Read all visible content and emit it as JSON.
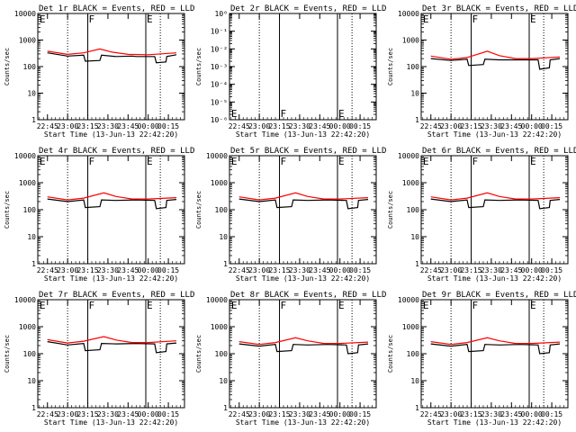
{
  "figure": {
    "x_tick_labels": [
      "22:45",
      "23:00",
      "23:15",
      "23:30",
      "23:45",
      "00:00",
      "00:15"
    ],
    "xlabel": "Start Time (13-Jun-13 22:42:20)",
    "ylabel": "Counts/sec",
    "y_tick_labels_log": [
      "1",
      "10",
      "100",
      "1000",
      "10000"
    ],
    "y_tick_labels_det2": [
      "10⁰",
      "10⁻¹",
      "10⁻²",
      "10⁻³",
      "10⁻⁴",
      "10⁻⁵",
      "10⁻⁶"
    ],
    "colors": {
      "events": "#000000",
      "lld": "#ff0000",
      "axes": "#000000"
    }
  },
  "chart_data": [
    {
      "type": "line",
      "title": "Det 1r BLACK = Events, RED = LLD",
      "ylim": [
        1,
        10000
      ],
      "yscale": "log",
      "markers_top": [
        "E",
        "F",
        "E"
      ],
      "series": [
        {
          "name": "Events",
          "color": "#000000",
          "values": [
            [
              22.75,
              330
            ],
            [
              23.0,
              250
            ],
            [
              23.2,
              270
            ],
            [
              23.22,
              160
            ],
            [
              23.4,
              170
            ],
            [
              23.42,
              270
            ],
            [
              23.6,
              240
            ],
            [
              23.8,
              250
            ],
            [
              23.85,
              240
            ],
            [
              24.08,
              240
            ],
            [
              24.1,
              140
            ],
            [
              24.22,
              150
            ],
            [
              24.23,
              240
            ],
            [
              24.35,
              280
            ]
          ]
        },
        {
          "name": "LLD",
          "color": "#ff0000",
          "values": [
            [
              22.75,
              380
            ],
            [
              23.0,
              290
            ],
            [
              23.2,
              330
            ],
            [
              23.4,
              460
            ],
            [
              23.55,
              350
            ],
            [
              23.75,
              290
            ],
            [
              24.0,
              280
            ],
            [
              24.35,
              330
            ]
          ]
        }
      ],
      "xlabel": "Start Time (13-Jun-13 22:42:20)"
    },
    {
      "type": "line",
      "title": "Det 2r BLACK = Events, RED = LLD",
      "ylim": [
        1e-06,
        1
      ],
      "yscale": "log",
      "markers_top": [],
      "markers_bottom": [
        "E",
        "F",
        "E"
      ],
      "series": []
    },
    {
      "type": "line",
      "title": "Det 3r BLACK = Events, RED = LLD",
      "ylim": [
        1,
        10000
      ],
      "yscale": "log",
      "markers_top": [
        "E",
        "F",
        "E"
      ],
      "series": [
        {
          "name": "Events",
          "color": "#000000",
          "values": [
            [
              22.75,
              200
            ],
            [
              23.0,
              170
            ],
            [
              23.2,
              190
            ],
            [
              23.22,
              110
            ],
            [
              23.4,
              120
            ],
            [
              23.42,
              190
            ],
            [
              23.6,
              180
            ],
            [
              23.85,
              180
            ],
            [
              24.08,
              180
            ],
            [
              24.1,
              80
            ],
            [
              24.22,
              90
            ],
            [
              24.23,
              180
            ],
            [
              24.35,
              200
            ]
          ]
        },
        {
          "name": "LLD",
          "color": "#ff0000",
          "values": [
            [
              22.75,
              250
            ],
            [
              23.0,
              190
            ],
            [
              23.2,
              220
            ],
            [
              23.45,
              380
            ],
            [
              23.6,
              260
            ],
            [
              23.8,
              200
            ],
            [
              24.0,
              200
            ],
            [
              24.35,
              230
            ]
          ]
        }
      ]
    },
    {
      "type": "line",
      "title": "Det 4r BLACK = Events, RED = LLD",
      "ylim": [
        1,
        10000
      ],
      "yscale": "log",
      "markers_top": [
        "E",
        "F",
        "E"
      ],
      "series": [
        {
          "name": "Events",
          "color": "#000000",
          "values": [
            [
              22.75,
              250
            ],
            [
              23.0,
              200
            ],
            [
              23.2,
              230
            ],
            [
              23.22,
              120
            ],
            [
              23.4,
              130
            ],
            [
              23.42,
              230
            ],
            [
              23.6,
              220
            ],
            [
              23.85,
              230
            ],
            [
              24.08,
              220
            ],
            [
              24.1,
              110
            ],
            [
              24.22,
              120
            ],
            [
              24.23,
              220
            ],
            [
              24.35,
              240
            ]
          ]
        },
        {
          "name": "LLD",
          "color": "#ff0000",
          "values": [
            [
              22.75,
              300
            ],
            [
              23.0,
              230
            ],
            [
              23.2,
              270
            ],
            [
              23.45,
              420
            ],
            [
              23.6,
              310
            ],
            [
              23.8,
              250
            ],
            [
              24.0,
              250
            ],
            [
              24.35,
              280
            ]
          ]
        }
      ],
      "xlabel": "Start Time (13-Jun-13 22:42:20)"
    },
    {
      "type": "line",
      "title": "Det 5r BLACK = Events, RED = LLD",
      "ylim": [
        1,
        10000
      ],
      "yscale": "log",
      "markers_top": [
        "E",
        "F",
        "E"
      ],
      "series": [
        {
          "name": "Events",
          "color": "#000000",
          "values": [
            [
              22.75,
              250
            ],
            [
              23.0,
              200
            ],
            [
              23.2,
              230
            ],
            [
              23.22,
              120
            ],
            [
              23.4,
              130
            ],
            [
              23.42,
              230
            ],
            [
              23.6,
              220
            ],
            [
              23.85,
              230
            ],
            [
              24.08,
              220
            ],
            [
              24.1,
              110
            ],
            [
              24.22,
              120
            ],
            [
              24.23,
              220
            ],
            [
              24.35,
              240
            ]
          ]
        },
        {
          "name": "LLD",
          "color": "#ff0000",
          "values": [
            [
              22.75,
              300
            ],
            [
              23.0,
              230
            ],
            [
              23.2,
              270
            ],
            [
              23.45,
              420
            ],
            [
              23.6,
              310
            ],
            [
              23.8,
              250
            ],
            [
              24.0,
              250
            ],
            [
              24.35,
              280
            ]
          ]
        }
      ],
      "xlabel": "Start Time (13-Jun-13 22:42:20)"
    },
    {
      "type": "line",
      "title": "Det 6r BLACK = Events, RED = LLD",
      "ylim": [
        1,
        10000
      ],
      "yscale": "log",
      "markers_top": [
        "E",
        "F",
        "E"
      ],
      "series": [
        {
          "name": "Events",
          "color": "#000000",
          "values": [
            [
              22.75,
              250
            ],
            [
              23.0,
              200
            ],
            [
              23.2,
              230
            ],
            [
              23.22,
              120
            ],
            [
              23.4,
              130
            ],
            [
              23.42,
              230
            ],
            [
              23.6,
              220
            ],
            [
              23.85,
              230
            ],
            [
              24.08,
              220
            ],
            [
              24.1,
              110
            ],
            [
              24.22,
              120
            ],
            [
              24.23,
              220
            ],
            [
              24.35,
              240
            ]
          ]
        },
        {
          "name": "LLD",
          "color": "#ff0000",
          "values": [
            [
              22.75,
              300
            ],
            [
              23.0,
              230
            ],
            [
              23.2,
              270
            ],
            [
              23.45,
              420
            ],
            [
              23.6,
              310
            ],
            [
              23.8,
              250
            ],
            [
              24.0,
              250
            ],
            [
              24.35,
              280
            ]
          ]
        }
      ],
      "xlabel": "Start Time (13-Jun-13 22:42:20)"
    },
    {
      "type": "line",
      "title": "Det 7r BLACK = Events, RED = LLD",
      "ylim": [
        1,
        10000
      ],
      "yscale": "log",
      "markers_top": [
        "E",
        "F",
        "E"
      ],
      "series": [
        {
          "name": "Events",
          "color": "#000000",
          "values": [
            [
              22.75,
              280
            ],
            [
              23.0,
              210
            ],
            [
              23.2,
              240
            ],
            [
              23.22,
              130
            ],
            [
              23.4,
              140
            ],
            [
              23.42,
              240
            ],
            [
              23.6,
              230
            ],
            [
              23.85,
              240
            ],
            [
              24.08,
              230
            ],
            [
              24.1,
              110
            ],
            [
              24.22,
              120
            ],
            [
              24.23,
              230
            ],
            [
              24.35,
              250
            ]
          ]
        },
        {
          "name": "LLD",
          "color": "#ff0000",
          "values": [
            [
              22.75,
              330
            ],
            [
              23.0,
              250
            ],
            [
              23.2,
              290
            ],
            [
              23.45,
              430
            ],
            [
              23.6,
              320
            ],
            [
              23.8,
              260
            ],
            [
              24.0,
              260
            ],
            [
              24.35,
              300
            ]
          ]
        }
      ],
      "xlabel": "Start Time (13-Jun-13 22:42:20)"
    },
    {
      "type": "line",
      "title": "Det 8r BLACK = Events, RED = LLD",
      "ylim": [
        1,
        10000
      ],
      "yscale": "log",
      "markers_top": [
        "E",
        "F",
        "E"
      ],
      "series": [
        {
          "name": "Events",
          "color": "#000000",
          "values": [
            [
              22.75,
              230
            ],
            [
              23.0,
              190
            ],
            [
              23.2,
              220
            ],
            [
              23.22,
              120
            ],
            [
              23.4,
              130
            ],
            [
              23.42,
              220
            ],
            [
              23.6,
              210
            ],
            [
              23.85,
              220
            ],
            [
              24.08,
              210
            ],
            [
              24.1,
              100
            ],
            [
              24.22,
              110
            ],
            [
              24.23,
              210
            ],
            [
              24.35,
              230
            ]
          ]
        },
        {
          "name": "LLD",
          "color": "#ff0000",
          "values": [
            [
              22.75,
              280
            ],
            [
              23.0,
              220
            ],
            [
              23.2,
              260
            ],
            [
              23.45,
              390
            ],
            [
              23.6,
              300
            ],
            [
              23.8,
              240
            ],
            [
              24.0,
              240
            ],
            [
              24.35,
              270
            ]
          ]
        }
      ],
      "xlabel": "Start Time (13-Jun-13 22:42:20)"
    },
    {
      "type": "line",
      "title": "Det 9r BLACK = Events, RED = LLD",
      "ylim": [
        1,
        10000
      ],
      "yscale": "log",
      "markers_top": [
        "E",
        "F",
        "E"
      ],
      "series": [
        {
          "name": "Events",
          "color": "#000000",
          "values": [
            [
              22.75,
              230
            ],
            [
              23.0,
              190
            ],
            [
              23.2,
              220
            ],
            [
              23.22,
              120
            ],
            [
              23.4,
              130
            ],
            [
              23.42,
              220
            ],
            [
              23.6,
              210
            ],
            [
              23.85,
              220
            ],
            [
              24.08,
              210
            ],
            [
              24.1,
              100
            ],
            [
              24.22,
              110
            ],
            [
              24.23,
              210
            ],
            [
              24.35,
              230
            ]
          ]
        },
        {
          "name": "LLD",
          "color": "#ff0000",
          "values": [
            [
              22.75,
              280
            ],
            [
              23.0,
              220
            ],
            [
              23.2,
              260
            ],
            [
              23.45,
              390
            ],
            [
              23.6,
              300
            ],
            [
              23.8,
              240
            ],
            [
              24.0,
              240
            ],
            [
              24.35,
              270
            ]
          ]
        }
      ],
      "xlabel": "Start Time (13-Jun-13 22:42:20)"
    }
  ]
}
